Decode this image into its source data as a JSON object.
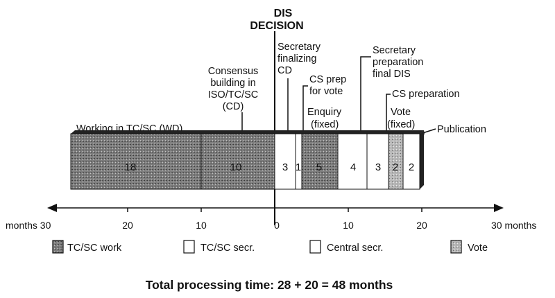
{
  "header": {
    "line1": "DIS",
    "line2": "DECISION"
  },
  "annotations": {
    "working": "Working in TC/SC (WD)",
    "consensus": [
      "Consensus",
      "building in",
      "ISO/TC/SC",
      "(CD)"
    ],
    "secretary_finalizing": [
      "Secretary",
      "finalizing",
      "CD"
    ],
    "cs_prep_vote": [
      "CS prep",
      "for vote"
    ],
    "enquiry": [
      "Enquiry",
      "(fixed)"
    ],
    "secretary_prep": [
      "Secretary",
      "preparation",
      "final DIS"
    ],
    "cs_preparation": "CS preparation",
    "vote": [
      "Vote",
      "(fixed)"
    ],
    "publication": "Publication"
  },
  "segments": [
    {
      "id": "tcsc-work-wd",
      "months": 18,
      "label": "18",
      "kind": "tcsc_work"
    },
    {
      "id": "tcsc-work-cd",
      "months": 10,
      "label": "10",
      "kind": "tcsc_work"
    },
    {
      "id": "tcsc-secr",
      "months": 3,
      "label": "3",
      "kind": "tcsc_secr"
    },
    {
      "id": "central-prep-vote",
      "months": 1,
      "label": "1",
      "kind": "central_secr"
    },
    {
      "id": "enquiry",
      "months": 5,
      "label": "5",
      "kind": "vote"
    },
    {
      "id": "secretary-final-dis",
      "months": 4,
      "label": "4",
      "kind": "tcsc_secr"
    },
    {
      "id": "central-prep",
      "months": 3,
      "label": "3",
      "kind": "central_secr"
    },
    {
      "id": "vote-fixed",
      "months": 2,
      "label": "2",
      "kind": "vote"
    },
    {
      "id": "publication-prep",
      "months": 2,
      "label": "2",
      "kind": "central_secr"
    }
  ],
  "axis": {
    "left_ticks": [
      "months 30",
      "20",
      "10"
    ],
    "zero": "0",
    "right_ticks": [
      "10",
      "20",
      "30 months"
    ]
  },
  "legend": [
    {
      "label": "TC/SC work",
      "kind": "tcsc_work"
    },
    {
      "label": "TC/SC secr.",
      "kind": "tcsc_secr"
    },
    {
      "label": "Central secr.",
      "kind": "central_secr"
    },
    {
      "label": "Vote",
      "kind": "vote"
    }
  ],
  "footer": {
    "total": "Total processing time: 28 + 20 = 48 months"
  },
  "colors": {
    "work": "#8a8a8a",
    "vote": "#b5b5b5",
    "ink": "#111111"
  }
}
